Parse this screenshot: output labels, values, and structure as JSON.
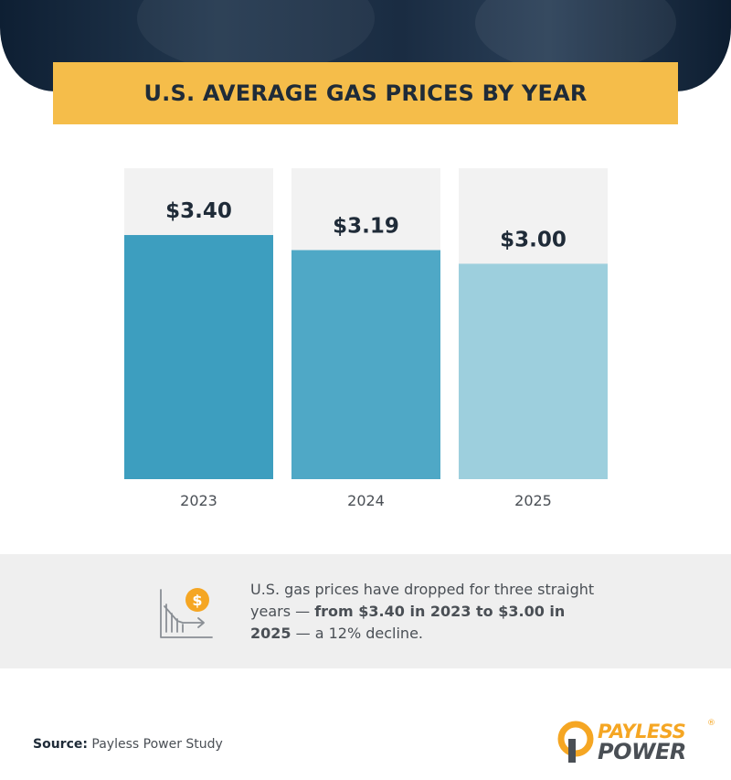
{
  "header": {
    "title": "U.S. AVERAGE GAS PRICES BY YEAR"
  },
  "chart_data": {
    "type": "bar",
    "title": "U.S. AVERAGE GAS PRICES BY YEAR",
    "categories": [
      "2023",
      "2024",
      "2025"
    ],
    "values": [
      3.4,
      3.19,
      3.0
    ],
    "value_labels": [
      "$3.40",
      "$3.19",
      "$3.00"
    ],
    "bar_colors": [
      "#3d9ebf",
      "#4fa8c6",
      "#9dcfdd"
    ],
    "ylim": [
      0,
      4.33
    ],
    "grid": false,
    "legend": "none"
  },
  "summary": {
    "text_before": "U.S. gas prices have dropped for three straight years — ",
    "text_bold": "from $3.40 in 2023 to $3.00 in 2025",
    "text_after": " — a 12% decline.",
    "icon": "dollar-price-drop-icon"
  },
  "source": {
    "label": "Source:",
    "value": " Payless Power Study"
  },
  "logo": {
    "word1": "PAYLESS",
    "word2": "POWER",
    "registered": "®"
  },
  "colors": {
    "accent": "#f5bd4a",
    "header_dark": "#0e1f33",
    "track": "#f2f2f2",
    "text_dark": "#1f2b38",
    "text_gray": "#4a4f55"
  }
}
